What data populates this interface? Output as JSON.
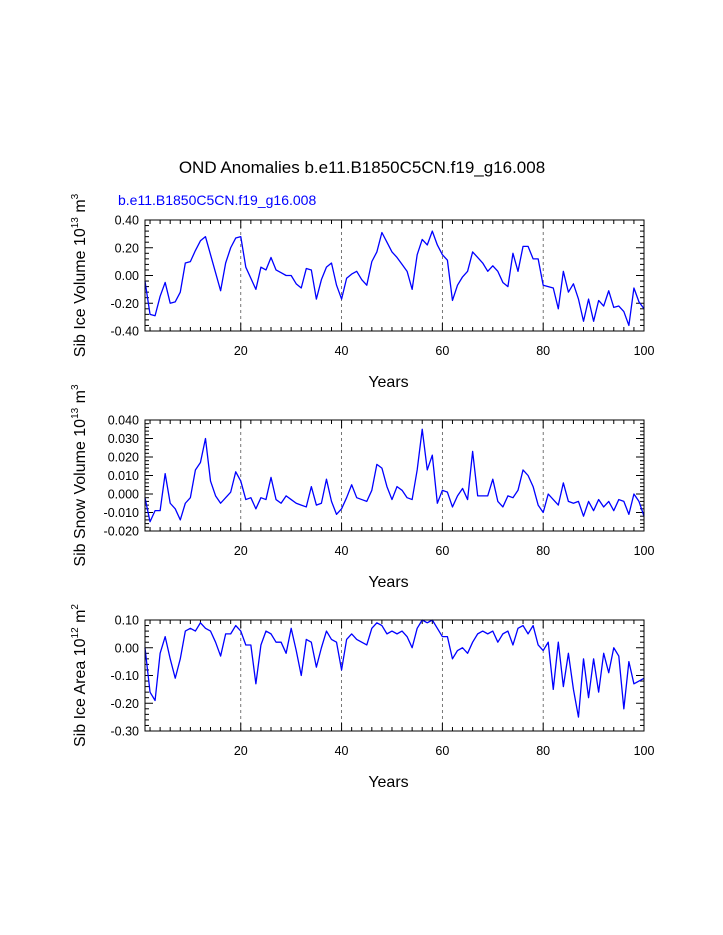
{
  "figure": {
    "title": "OND Anomalies b.e11.B1850C5CN.f19_g16.008",
    "case_label": "b.e11.B1850C5CN.f19_g16.008",
    "case_label_color": "#0000ff",
    "line_color": "#0000ff"
  },
  "chart_data": [
    {
      "type": "line",
      "title": "",
      "ylabel_main": "Sib Ice Volume 10",
      "ylabel_exp": "13",
      "ylabel_unit": " m",
      "ylabel_unit_exp": "3",
      "xlabel": "Years",
      "xlim": [
        1,
        100
      ],
      "ylim": [
        -0.4,
        0.4
      ],
      "xticks": [
        20,
        40,
        60,
        80,
        100
      ],
      "yticks": [
        -0.4,
        -0.2,
        0.0,
        0.2,
        0.4
      ],
      "ytick_labels": [
        "-0.40",
        "-0.20",
        "0.00",
        "0.20",
        "0.40"
      ],
      "grid_x": [
        20,
        40,
        60,
        80
      ],
      "values": [
        -0.04,
        -0.28,
        -0.29,
        -0.15,
        -0.05,
        -0.2,
        -0.19,
        -0.12,
        0.09,
        0.1,
        0.18,
        0.25,
        0.28,
        0.15,
        0.02,
        -0.11,
        0.09,
        0.2,
        0.27,
        0.28,
        0.06,
        -0.02,
        -0.1,
        0.06,
        0.04,
        0.13,
        0.04,
        0.02,
        0.0,
        0.0,
        -0.06,
        -0.09,
        0.05,
        0.04,
        -0.17,
        -0.03,
        0.06,
        0.09,
        -0.07,
        -0.17,
        -0.02,
        0.01,
        0.03,
        -0.03,
        -0.07,
        0.1,
        0.17,
        0.31,
        0.24,
        0.17,
        0.13,
        0.08,
        0.03,
        -0.1,
        0.15,
        0.26,
        0.22,
        0.32,
        0.22,
        0.15,
        0.11,
        -0.18,
        -0.07,
        -0.01,
        0.03,
        0.17,
        0.13,
        0.09,
        0.03,
        0.07,
        0.03,
        -0.05,
        -0.08,
        0.16,
        0.03,
        0.21,
        0.21,
        0.12,
        0.12,
        -0.07,
        -0.08,
        -0.09,
        -0.24,
        0.03,
        -0.12,
        -0.06,
        -0.17,
        -0.33,
        -0.17,
        -0.33,
        -0.18,
        -0.22,
        -0.11,
        -0.23,
        -0.22,
        -0.26,
        -0.36,
        -0.09,
        -0.19,
        -0.24
      ]
    },
    {
      "type": "line",
      "title": "",
      "ylabel_main": "Sib Snow Volume 10",
      "ylabel_exp": "13",
      "ylabel_unit": " m",
      "ylabel_unit_exp": "3",
      "xlabel": "Years",
      "xlim": [
        1,
        100
      ],
      "ylim": [
        -0.02,
        0.04
      ],
      "xticks": [
        20,
        40,
        60,
        80,
        100
      ],
      "yticks": [
        -0.02,
        -0.01,
        0.0,
        0.01,
        0.02,
        0.03,
        0.04
      ],
      "ytick_labels": [
        "-0.020",
        "-0.010",
        "0.000",
        "0.010",
        "0.020",
        "0.030",
        "0.040"
      ],
      "grid_x": [
        20,
        40,
        60,
        80
      ],
      "values": [
        -0.002,
        -0.015,
        -0.009,
        -0.009,
        0.011,
        -0.005,
        -0.008,
        -0.014,
        -0.005,
        -0.002,
        0.013,
        0.017,
        0.03,
        0.007,
        -0.001,
        -0.005,
        -0.002,
        0.001,
        0.012,
        0.007,
        -0.003,
        -0.002,
        -0.008,
        -0.002,
        -0.003,
        0.009,
        -0.003,
        -0.005,
        -0.001,
        -0.003,
        -0.005,
        -0.006,
        -0.007,
        0.004,
        -0.006,
        -0.005,
        0.008,
        -0.004,
        -0.011,
        -0.008,
        -0.002,
        0.005,
        -0.002,
        -0.003,
        -0.004,
        0.002,
        0.016,
        0.014,
        0.004,
        -0.003,
        0.004,
        0.002,
        -0.002,
        -0.003,
        0.013,
        0.035,
        0.013,
        0.021,
        -0.005,
        0.002,
        0.001,
        -0.007,
        -0.001,
        0.003,
        -0.003,
        0.023,
        -0.001,
        -0.001,
        -0.001,
        0.008,
        -0.004,
        -0.007,
        -0.001,
        -0.002,
        0.002,
        0.013,
        0.01,
        0.004,
        -0.006,
        -0.01,
        0.0,
        -0.003,
        -0.006,
        0.006,
        -0.004,
        -0.005,
        -0.004,
        -0.012,
        -0.004,
        -0.009,
        -0.003,
        -0.007,
        -0.004,
        -0.009,
        -0.003,
        -0.004,
        -0.011,
        0.0,
        -0.004,
        -0.012
      ]
    },
    {
      "type": "line",
      "title": "",
      "ylabel_main": "Sib Ice Area 10",
      "ylabel_exp": "12",
      "ylabel_unit": " m",
      "ylabel_unit_exp": "2",
      "xlabel": "Years",
      "xlim": [
        1,
        100
      ],
      "ylim": [
        -0.3,
        0.1
      ],
      "xticks": [
        20,
        40,
        60,
        80,
        100
      ],
      "yticks": [
        -0.3,
        -0.2,
        -0.1,
        0.0,
        0.1
      ],
      "ytick_labels": [
        "-0.30",
        "-0.20",
        "-0.10",
        "0.00",
        "0.10"
      ],
      "grid_x": [
        20,
        40,
        60,
        80
      ],
      "values": [
        0.0,
        -0.16,
        -0.19,
        -0.02,
        0.04,
        -0.04,
        -0.11,
        -0.04,
        0.06,
        0.07,
        0.06,
        0.09,
        0.07,
        0.06,
        0.02,
        -0.03,
        0.05,
        0.05,
        0.08,
        0.06,
        0.01,
        0.01,
        -0.13,
        0.01,
        0.06,
        0.05,
        0.02,
        0.02,
        -0.02,
        0.07,
        -0.01,
        -0.1,
        0.03,
        0.02,
        -0.07,
        0.0,
        0.06,
        0.03,
        0.02,
        -0.08,
        0.03,
        0.05,
        0.03,
        0.02,
        0.01,
        0.07,
        0.09,
        0.08,
        0.05,
        0.06,
        0.05,
        0.06,
        0.04,
        0.0,
        0.07,
        0.1,
        0.09,
        0.1,
        0.07,
        0.04,
        0.04,
        -0.04,
        -0.01,
        0.0,
        -0.02,
        0.02,
        0.05,
        0.06,
        0.05,
        0.06,
        0.02,
        0.05,
        0.06,
        0.01,
        0.07,
        0.08,
        0.05,
        0.08,
        0.01,
        -0.01,
        0.02,
        -0.15,
        0.02,
        -0.14,
        -0.02,
        -0.15,
        -0.25,
        -0.04,
        -0.18,
        -0.04,
        -0.16,
        -0.02,
        -0.09,
        0.0,
        -0.03,
        -0.22,
        -0.05,
        -0.13,
        -0.12,
        -0.11
      ]
    }
  ]
}
